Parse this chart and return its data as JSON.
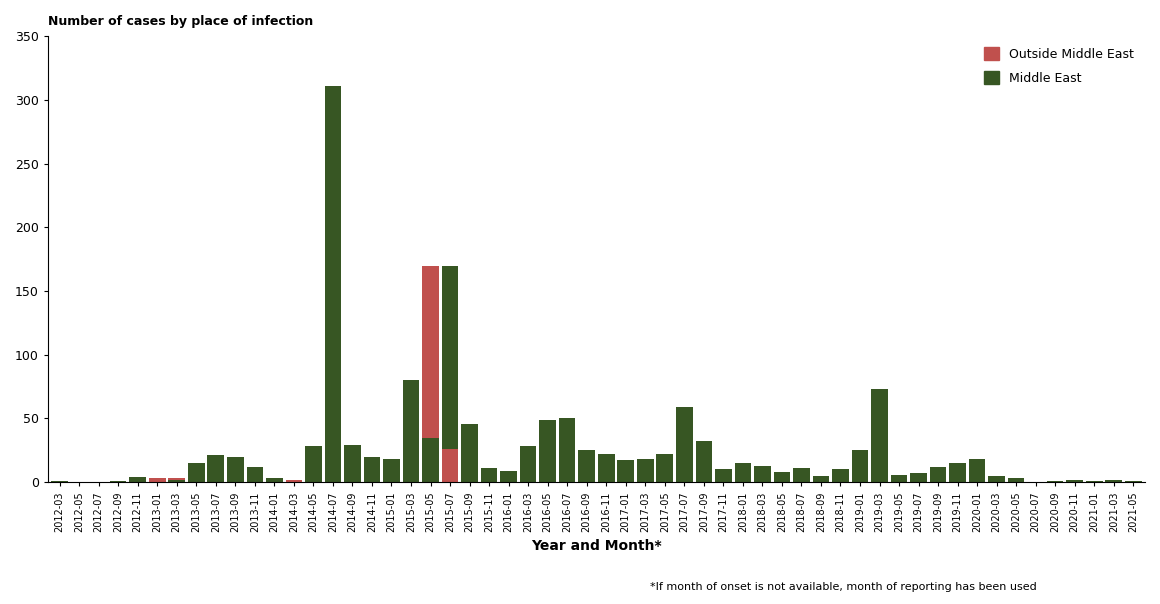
{
  "title": "Number of cases by place of infection",
  "xlabel": "Year and Month*",
  "footnote": "*If month of onset is not available, month of reporting has been used",
  "ylim": [
    0,
    350
  ],
  "yticks": [
    0,
    50,
    100,
    150,
    200,
    250,
    300,
    350
  ],
  "legend_outside": "Outside Middle East",
  "legend_middle": "Middle East",
  "color_outside": "#c0504d",
  "color_middle": "#375623",
  "categories": [
    "2012-03",
    "2012-05",
    "2012-07",
    "2012-09",
    "2012-11",
    "2013-01",
    "2013-03",
    "2013-05",
    "2013-07",
    "2013-09",
    "2013-11",
    "2014-01",
    "2014-03",
    "2014-05",
    "2014-07",
    "2014-09",
    "2014-11",
    "2015-01",
    "2015-03",
    "2015-05",
    "2015-07",
    "2015-09",
    "2015-11",
    "2016-01",
    "2016-03",
    "2016-05",
    "2016-07",
    "2016-09",
    "2016-11",
    "2017-01",
    "2017-03",
    "2017-05",
    "2017-07",
    "2017-09",
    "2017-11",
    "2018-01",
    "2018-03",
    "2018-05",
    "2018-07",
    "2018-09",
    "2018-11",
    "2019-01",
    "2019-03",
    "2019-05",
    "2019-07",
    "2019-09",
    "2019-11",
    "2020-01",
    "2020-03",
    "2020-05",
    "2020-07",
    "2020-09",
    "2020-11",
    "2021-01",
    "2021-03",
    "2021-05"
  ],
  "middle_east": [
    1,
    0,
    0,
    1,
    4,
    0,
    3,
    15,
    21,
    20,
    12,
    3,
    0,
    28,
    311,
    29,
    20,
    18,
    80,
    35,
    170,
    46,
    11,
    9,
    28,
    49,
    50,
    25,
    22,
    17,
    18,
    22,
    59,
    32,
    10,
    15,
    13,
    8,
    11,
    5,
    10,
    25,
    73,
    6,
    7,
    12,
    15,
    18,
    5,
    3,
    0,
    1,
    2,
    1,
    2,
    1
  ],
  "outside_middle_east_total": {
    "2013-01": 3,
    "2013-03": 2,
    "2014-03": 2,
    "2015-05": 170,
    "2015-07": 26
  },
  "outside_middle_east_green_base": {
    "2013-01": 0,
    "2013-03": 3,
    "2014-03": 0,
    "2015-05": 35,
    "2015-07": 0
  }
}
